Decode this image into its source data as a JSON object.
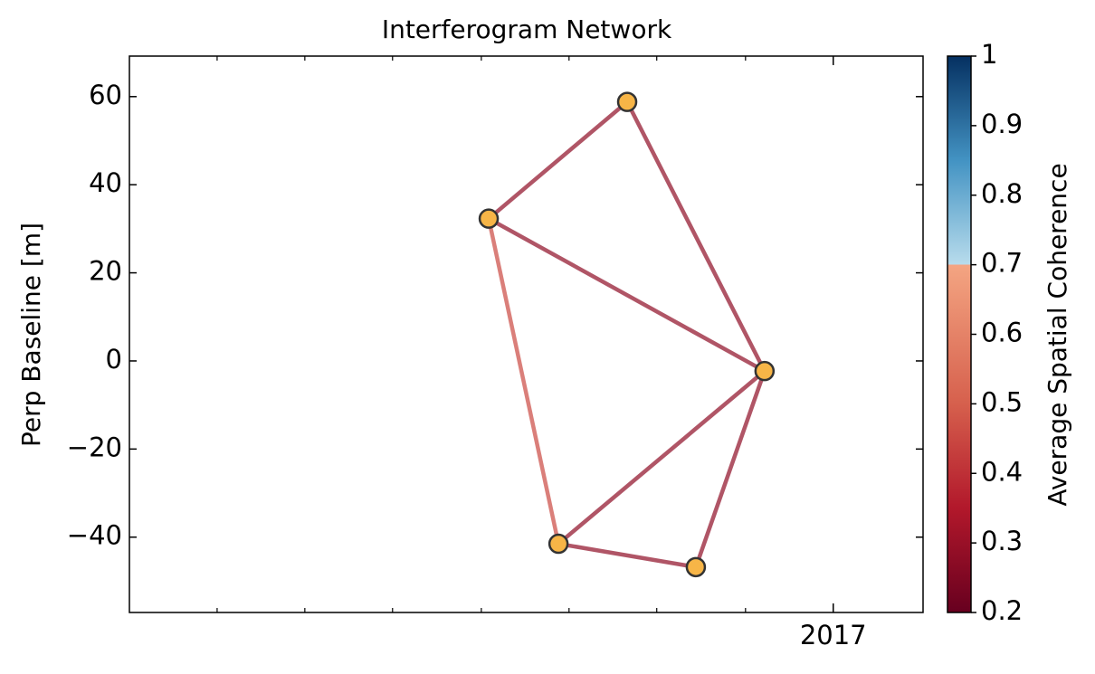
{
  "chart_data": {
    "type": "network",
    "title": "Interferogram Network",
    "ylabel": "Perp Baseline [m]",
    "xlim": [
      2016.334,
      2017.085
    ],
    "ylim": [
      -57.1,
      69.2
    ],
    "xticks": [
      2017
    ],
    "xminorticks": [
      2016.417,
      2016.5,
      2016.583,
      2016.667,
      2016.75,
      2016.833,
      2016.917
    ],
    "yticks": [
      -40,
      -20,
      0,
      20,
      40,
      60
    ],
    "nodes": {
      "x": [
        2016.674,
        2016.805,
        2016.935,
        2016.74,
        2016.87
      ],
      "y": [
        32.3,
        58.8,
        -2.3,
        -41.5,
        -46.8
      ],
      "color": "#f7b547",
      "edgecolor": "#333333"
    },
    "edges": [
      {
        "nodes": [
          0,
          1
        ],
        "coherence": 0.28
      },
      {
        "nodes": [
          1,
          2
        ],
        "coherence": 0.28
      },
      {
        "nodes": [
          0,
          2
        ],
        "coherence": 0.28
      },
      {
        "nodes": [
          0,
          3
        ],
        "coherence": 0.45
      },
      {
        "nodes": [
          3,
          2
        ],
        "coherence": 0.28
      },
      {
        "nodes": [
          3,
          4
        ],
        "coherence": 0.28
      },
      {
        "nodes": [
          4,
          2
        ],
        "coherence": 0.28
      }
    ],
    "colorbar": {
      "label": "Average Spatial Coherence",
      "clim": [
        0.2,
        1.0
      ],
      "ticks": [
        0.2,
        0.3,
        0.4,
        0.5,
        0.6,
        0.7,
        0.8,
        0.9,
        1.0
      ],
      "colormap": [
        [
          0.2,
          "#67001f"
        ],
        [
          0.35,
          "#b2182b"
        ],
        [
          0.5,
          "#d6604d"
        ],
        [
          0.7,
          "#f4a582"
        ],
        [
          0.7,
          "#b8dcec"
        ],
        [
          0.85,
          "#4393c3"
        ],
        [
          1.0,
          "#053061"
        ]
      ]
    }
  }
}
